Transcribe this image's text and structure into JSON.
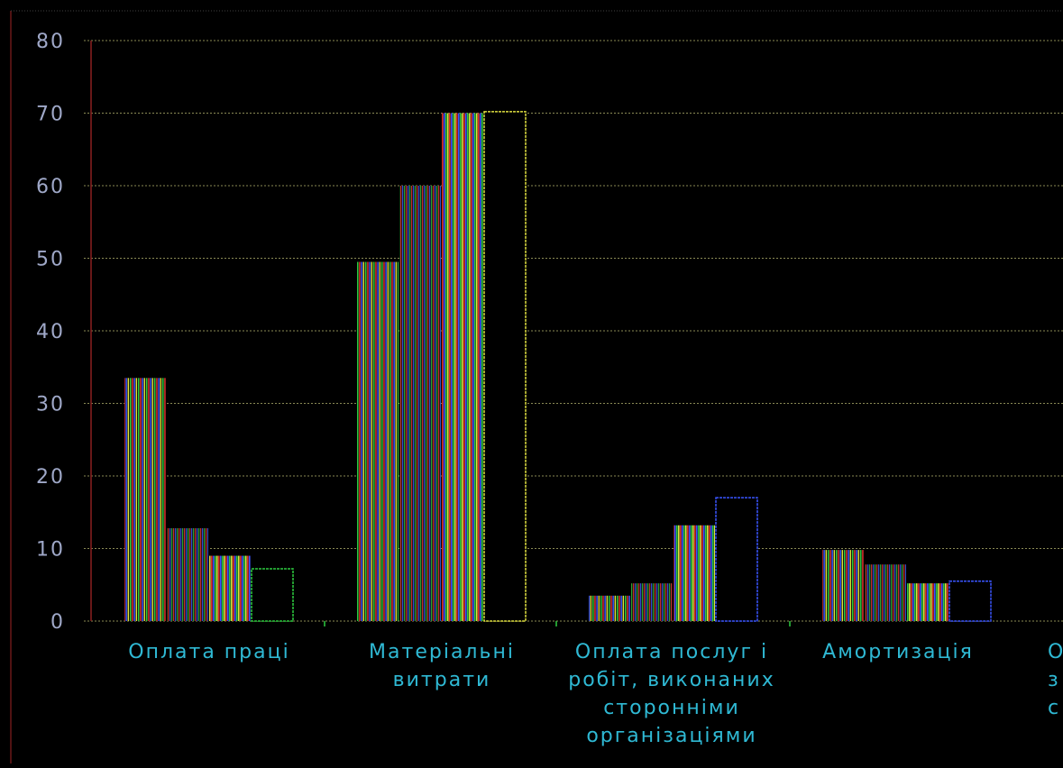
{
  "chart_data": {
    "type": "bar",
    "categories": [
      [
        "Оплата праці"
      ],
      [
        "Матеріальні",
        "витрати"
      ],
      [
        "Оплата послуг і",
        "робіт, виконаних",
        "сторонніми",
        "організаціями"
      ],
      [
        "Амортизація"
      ],
      [
        "Ор",
        "з",
        "с"
      ]
    ],
    "series": [
      {
        "values": [
          33.5,
          49.5,
          3.5,
          9.8,
          null
        ]
      },
      {
        "values": [
          12.8,
          60.0,
          5.2,
          7.8,
          null
        ]
      },
      {
        "values": [
          9.0,
          70.0,
          13.2,
          5.2,
          null
        ]
      },
      {
        "values": [
          7.2,
          70.2,
          17.0,
          5.5,
          null
        ]
      }
    ],
    "ylim": [
      0,
      80
    ],
    "yticks": [
      0,
      10,
      20,
      30,
      40,
      50,
      60,
      70,
      80
    ],
    "ytick_labels": [
      "0",
      "10",
      "20",
      "30",
      "40",
      "50",
      "60",
      "70",
      "80"
    ],
    "grid": true,
    "colors": {
      "background": "#000000",
      "grid": "#8a8a55",
      "axis": "#8a2020",
      "tick_label": "#9fa8c8",
      "category_label": "#2fb9d4",
      "bar_outline": "#2233cc"
    }
  }
}
